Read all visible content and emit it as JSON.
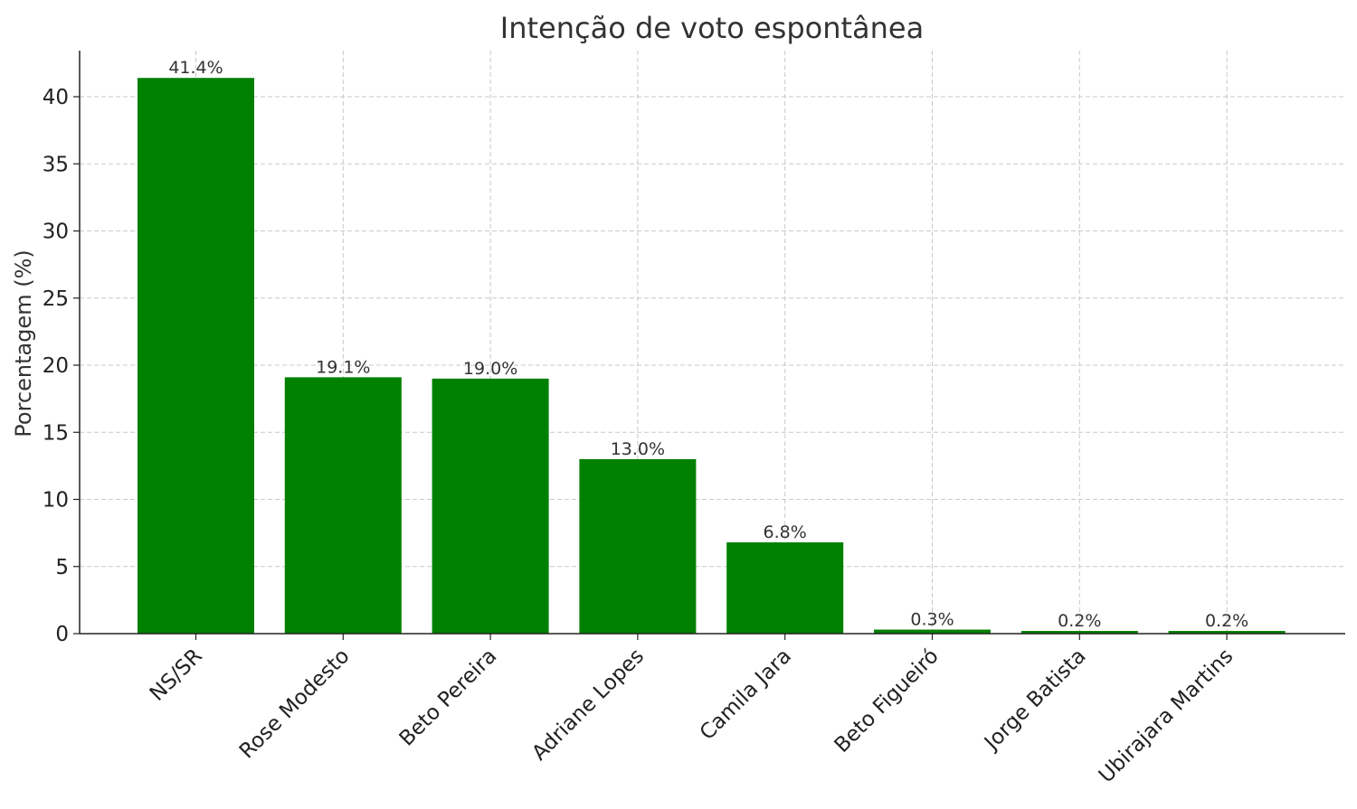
{
  "chart_data": {
    "type": "bar",
    "title": "Intenção de voto espontânea",
    "xlabel": "",
    "ylabel": "Porcentagem (%)",
    "categories": [
      "NS/SR",
      "Rose Modesto",
      "Beto Pereira",
      "Adriane Lopes",
      "Camila Jara",
      "Beto Figueiró",
      "Jorge Batista",
      "Ubirajara Martins"
    ],
    "values": [
      41.4,
      19.1,
      19.0,
      13.0,
      6.8,
      0.3,
      0.2,
      0.2
    ],
    "data_labels": [
      "41.4%",
      "19.1%",
      "19.0%",
      "13.0%",
      "6.8%",
      "0.3%",
      "0.2%",
      "0.2%"
    ],
    "yticks": [
      0,
      5,
      10,
      15,
      20,
      25,
      30,
      35,
      40
    ],
    "ylim": [
      0,
      43.5
    ],
    "grid": true,
    "bar_color": "#008000"
  }
}
